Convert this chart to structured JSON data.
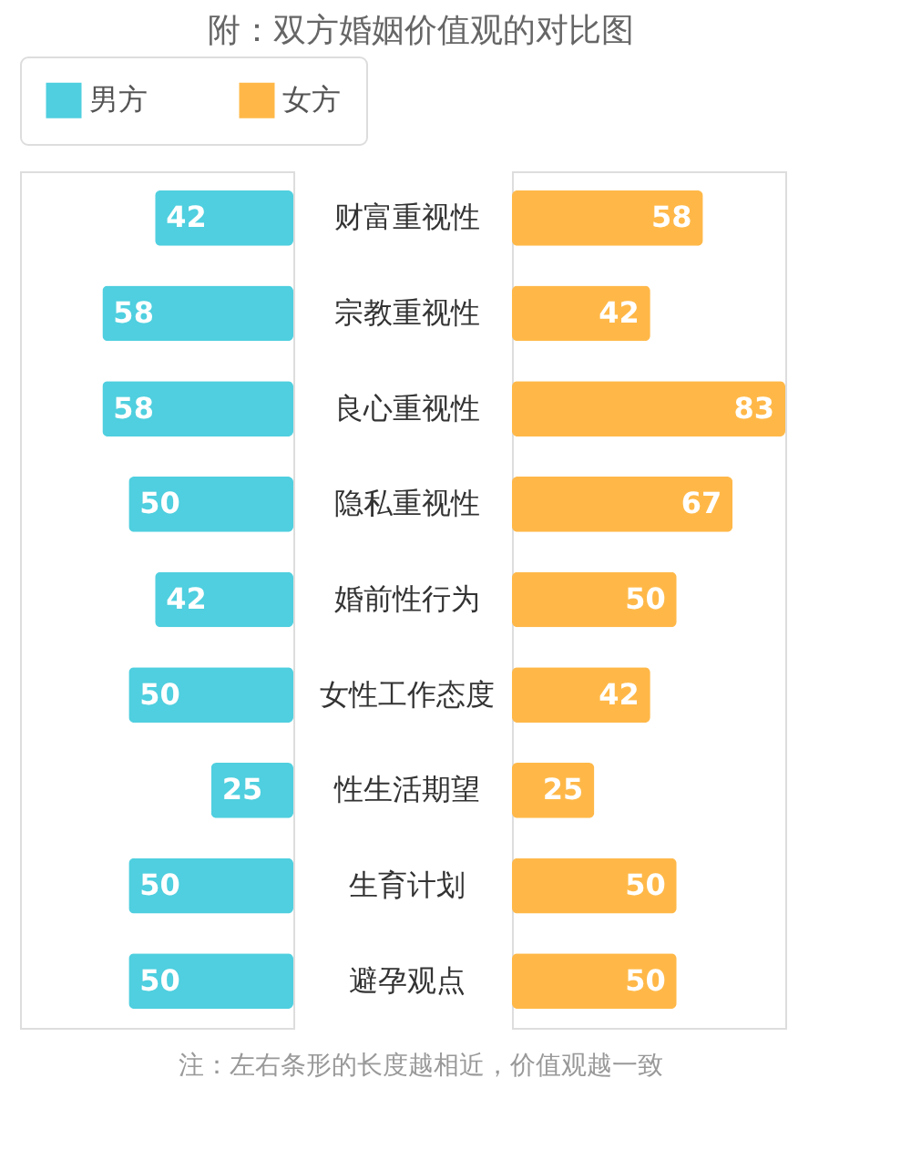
{
  "chart_data": [
    {
      "type": "bar",
      "orientation": "horizontal",
      "title": "附：双方婚姻价值观的对比图",
      "categories": [
        "财富重视性",
        "宗教重视性",
        "良心重视性",
        "隐私重视性",
        "婚前性行为",
        "女性工作态度",
        "性生活期望",
        "生育计划",
        "避孕观点"
      ],
      "series": [
        {
          "name": "男方",
          "color": "#4fcfdf",
          "values": [
            42,
            58,
            58,
            50,
            42,
            50,
            25,
            50,
            50
          ]
        }
      ],
      "data_labels": true,
      "legend": "top"
    },
    {
      "type": "bar",
      "orientation": "horizontal",
      "categories": [
        null,
        null,
        null,
        null,
        null,
        null,
        null,
        null,
        null
      ],
      "series": [
        {
          "name": "女方",
          "color": "#ffb848",
          "values": [
            58,
            42,
            83,
            67,
            50,
            42,
            25,
            50,
            50
          ]
        }
      ],
      "data_labels": true,
      "annotations": [
        "注：左右条形的长度越相近，价值观越一致"
      ]
    }
  ]
}
